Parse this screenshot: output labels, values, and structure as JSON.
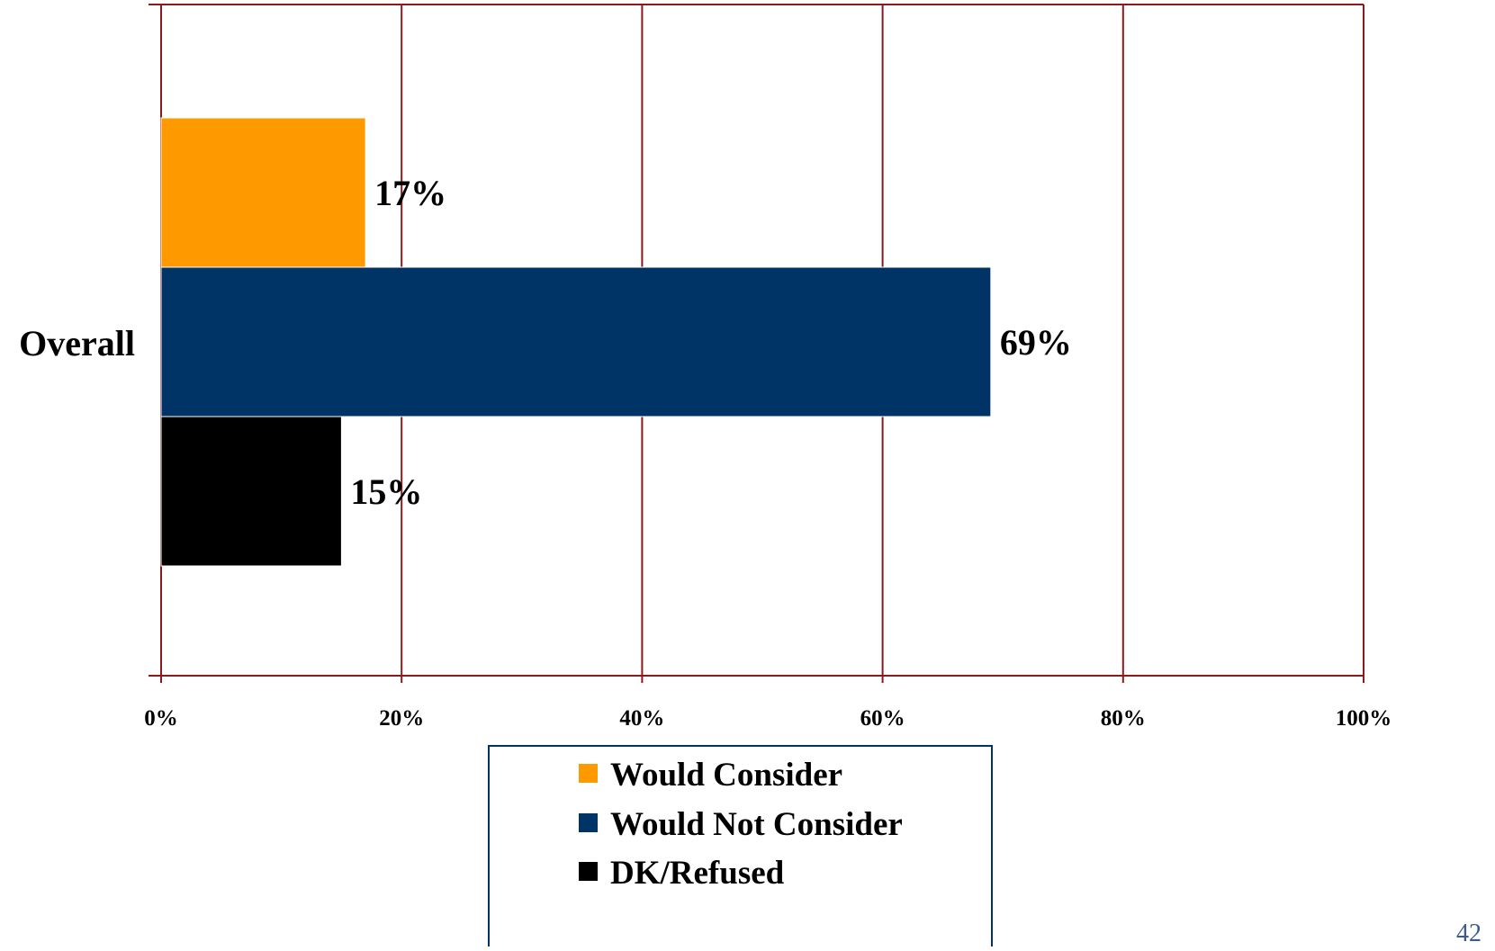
{
  "chart_data": {
    "type": "bar",
    "orientation": "horizontal",
    "categories": [
      "Overall"
    ],
    "series": [
      {
        "name": "Would Consider",
        "values": [
          17
        ],
        "color": "#FF9900",
        "value_label": "17%"
      },
      {
        "name": "Would Not Consider",
        "values": [
          69
        ],
        "color": "#003366",
        "value_label": "69%"
      },
      {
        "name": "DK/Refused",
        "values": [
          15
        ],
        "color": "#000000",
        "value_label": "15%"
      }
    ],
    "xlim": [
      0,
      100
    ],
    "x_ticks": [
      0,
      20,
      40,
      60,
      80,
      100
    ],
    "x_tick_labels": [
      "0%",
      "20%",
      "40%",
      "60%",
      "80%",
      "100%"
    ],
    "grid": true,
    "grid_color": "#8B1A1A",
    "legend": {
      "position": "bottom",
      "border_color": "#003366"
    }
  },
  "page_number": "42"
}
